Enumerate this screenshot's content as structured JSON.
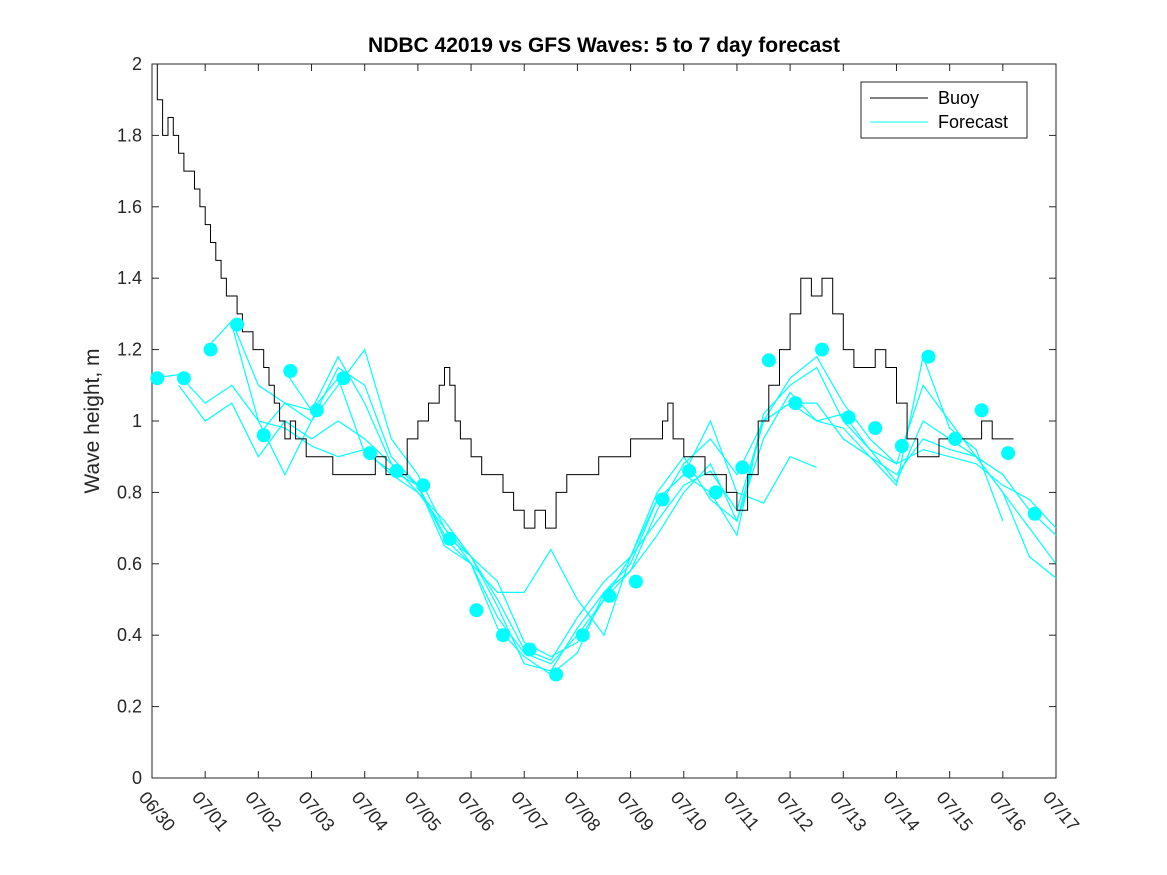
{
  "chart_data": {
    "type": "line",
    "title": "NDBC 42019 vs GFS Waves: 5 to 7 day forecast",
    "xlabel": "",
    "ylabel": "Wave height, m",
    "xlim": [
      "06/30",
      "07/17"
    ],
    "ylim": [
      0,
      2
    ],
    "x_ticks": [
      "06/30",
      "07/01",
      "07/02",
      "07/03",
      "07/04",
      "07/05",
      "07/06",
      "07/07",
      "07/08",
      "07/09",
      "07/10",
      "07/11",
      "07/12",
      "07/13",
      "07/14",
      "07/15",
      "07/16",
      "07/17"
    ],
    "y_ticks": [
      0,
      0.2,
      0.4,
      0.6,
      0.8,
      1,
      1.2,
      1.4,
      1.6,
      1.8,
      2
    ],
    "y_tick_labels": [
      "0",
      "0.2",
      "0.4",
      "0.6",
      "0.8",
      "1",
      "1.2",
      "1.4",
      "1.6",
      "1.8",
      "2"
    ],
    "grid": false,
    "legend_position": "top-right",
    "x_unit_note": "day",
    "buoy_color": "#000000",
    "forecast_color": "#00ffff",
    "series": [
      {
        "name": "Buoy",
        "color": "#000000",
        "x_days": [
          0,
          0.1,
          0.2,
          0.3,
          0.4,
          0.5,
          0.6,
          0.7,
          0.8,
          0.9,
          1.0,
          1.1,
          1.2,
          1.3,
          1.4,
          1.5,
          1.6,
          1.7,
          1.8,
          1.9,
          2.0,
          2.1,
          2.2,
          2.3,
          2.4,
          2.5,
          2.6,
          2.7,
          2.8,
          2.9,
          3.0,
          3.2,
          3.4,
          3.6,
          3.8,
          4.0,
          4.2,
          4.4,
          4.6,
          4.8,
          5.0,
          5.2,
          5.4,
          5.5,
          5.6,
          5.7,
          5.8,
          6.0,
          6.2,
          6.4,
          6.6,
          6.8,
          7.0,
          7.2,
          7.4,
          7.6,
          7.8,
          8.0,
          8.2,
          8.4,
          8.6,
          8.8,
          9.0,
          9.2,
          9.4,
          9.6,
          9.7,
          9.8,
          10.0,
          10.2,
          10.4,
          10.6,
          10.8,
          11.0,
          11.1,
          11.2,
          11.4,
          11.6,
          11.8,
          12.0,
          12.2,
          12.4,
          12.6,
          12.8,
          13.0,
          13.2,
          13.4,
          13.6,
          13.8,
          14.0,
          14.2,
          14.4,
          14.6,
          14.8,
          15.0,
          15.2,
          15.4,
          15.6,
          15.8,
          16.0,
          16.2
        ],
        "values": [
          2.0,
          1.9,
          1.8,
          1.85,
          1.8,
          1.75,
          1.7,
          1.7,
          1.65,
          1.6,
          1.55,
          1.5,
          1.45,
          1.4,
          1.35,
          1.35,
          1.3,
          1.25,
          1.25,
          1.2,
          1.2,
          1.15,
          1.1,
          1.05,
          1.0,
          0.95,
          1.0,
          0.95,
          0.95,
          0.9,
          0.9,
          0.9,
          0.85,
          0.85,
          0.85,
          0.85,
          0.9,
          0.85,
          0.85,
          0.95,
          1.0,
          1.05,
          1.1,
          1.15,
          1.1,
          1.0,
          0.95,
          0.9,
          0.85,
          0.85,
          0.8,
          0.75,
          0.7,
          0.75,
          0.7,
          0.8,
          0.85,
          0.85,
          0.85,
          0.9,
          0.9,
          0.9,
          0.95,
          0.95,
          0.95,
          1.0,
          1.05,
          0.95,
          0.9,
          0.9,
          0.85,
          0.85,
          0.8,
          0.75,
          0.75,
          0.85,
          1.0,
          1.1,
          1.2,
          1.3,
          1.4,
          1.35,
          1.4,
          1.3,
          1.2,
          1.15,
          1.15,
          1.2,
          1.15,
          1.05,
          0.95,
          0.9,
          0.9,
          0.95,
          0.95,
          0.95,
          0.95,
          1.0,
          0.95,
          0.95,
          0.95
        ]
      },
      {
        "name": "Forecast",
        "color": "#00ffff",
        "markers": {
          "x_days": [
            0.1,
            0.6,
            1.1,
            1.6,
            2.1,
            2.6,
            3.1,
            3.6,
            4.1,
            4.6,
            5.1,
            5.6,
            6.1,
            6.6,
            7.1,
            7.6,
            8.1,
            8.6,
            9.1,
            9.6,
            10.1,
            10.6,
            11.1,
            11.6,
            12.1,
            12.6,
            13.1,
            13.6,
            14.1,
            14.6,
            15.1,
            15.6,
            16.1,
            16.6
          ],
          "values": [
            1.12,
            1.12,
            1.2,
            1.27,
            0.96,
            1.14,
            1.03,
            1.12,
            0.91,
            0.86,
            0.82,
            0.67,
            0.47,
            0.4,
            0.36,
            0.29,
            0.4,
            0.51,
            0.55,
            0.78,
            0.86,
            0.8,
            0.87,
            1.17,
            1.05,
            1.2,
            1.01,
            0.98,
            0.93,
            1.18,
            0.95,
            1.03,
            0.91,
            0.74
          ]
        },
        "runs": [
          {
            "x_days": [
              0,
              0.5,
              1,
              1.5,
              2,
              2.5,
              3,
              3.5,
              4,
              4.5,
              5,
              5.5,
              6,
              6.5,
              7,
              7.5,
              8,
              8.5,
              9,
              9.5,
              10,
              10.5,
              11,
              11.5,
              12,
              12.5,
              13,
              13.5,
              14,
              14.5,
              15,
              15.5,
              16,
              16.5,
              17
            ],
            "values": [
              1.12,
              1.13,
              1.05,
              1.1,
              1.0,
              0.98,
              0.93,
              0.9,
              0.92,
              0.85,
              0.8,
              0.7,
              0.62,
              0.5,
              0.36,
              0.33,
              0.45,
              0.55,
              0.62,
              0.72,
              0.82,
              0.86,
              0.75,
              1.0,
              1.05,
              1.05,
              0.95,
              0.9,
              0.85,
              0.95,
              0.92,
              0.9,
              0.85,
              0.75,
              0.68
            ]
          },
          {
            "x_days": [
              0.5,
              1,
              1.5,
              2,
              2.5,
              3,
              3.5,
              4,
              4.5,
              5,
              5.5,
              6,
              6.5,
              7,
              7.5,
              8,
              8.5,
              9,
              9.5,
              10,
              10.5,
              11,
              11.5,
              12,
              12.5,
              13,
              13.5,
              14,
              14.5,
              15,
              15.5,
              16,
              16.5,
              17
            ],
            "values": [
              1.1,
              1.0,
              1.05,
              0.9,
              1.0,
              0.95,
              1.0,
              0.95,
              0.88,
              0.8,
              0.72,
              0.62,
              0.55,
              0.38,
              0.34,
              0.38,
              0.5,
              0.58,
              0.68,
              0.8,
              0.88,
              0.72,
              0.95,
              1.08,
              1.0,
              1.02,
              0.92,
              0.88,
              0.92,
              0.9,
              0.88,
              0.82,
              0.78,
              0.7
            ]
          },
          {
            "x_days": [
              1,
              1.5,
              2,
              2.5,
              3,
              3.5,
              4,
              4.5,
              5,
              5.5,
              6,
              6.5,
              7,
              7.5,
              8,
              8.5,
              9,
              9.5,
              10,
              10.5,
              11,
              11.5,
              12,
              12.5,
              13,
              13.5,
              14,
              14.5,
              15,
              15.5,
              16,
              16.5,
              17
            ],
            "values": [
              1.2,
              1.28,
              1.1,
              1.05,
              1.0,
              1.15,
              1.1,
              0.9,
              0.82,
              0.68,
              0.62,
              0.48,
              0.32,
              0.3,
              0.42,
              0.52,
              0.6,
              0.78,
              0.85,
              0.8,
              0.68,
              1.02,
              1.1,
              1.15,
              1.0,
              0.92,
              0.83,
              1.0,
              0.95,
              0.9,
              0.8,
              0.7,
              0.6
            ]
          },
          {
            "x_days": [
              1.5,
              2,
              2.5,
              3,
              3.5,
              4,
              4.5,
              5,
              5.5,
              6,
              6.5,
              7,
              7.5,
              8,
              8.5,
              9,
              9.5,
              10,
              10.5,
              11,
              11.5,
              12,
              12.5,
              13,
              13.5,
              14,
              14.5,
              15,
              15.5,
              16,
              16.5,
              17
            ],
            "values": [
              1.27,
              1.0,
              0.85,
              1.0,
              1.1,
              1.2,
              0.95,
              0.85,
              0.7,
              0.6,
              0.45,
              0.35,
              0.32,
              0.4,
              0.5,
              0.62,
              0.8,
              0.9,
              0.78,
              0.72,
              1.0,
              1.12,
              1.18,
              1.05,
              0.95,
              0.88,
              1.1,
              1.0,
              0.9,
              0.8,
              0.62,
              0.56
            ]
          },
          {
            "x_days": [
              2,
              2.5,
              3,
              3.5,
              4,
              4.5,
              5,
              5.5,
              6,
              6.5,
              7,
              7.5,
              8,
              8.5,
              9,
              9.5,
              10,
              10.5,
              11,
              11.5,
              12,
              12.5,
              13,
              13.5,
              14,
              14.5,
              15,
              15.5,
              16
            ],
            "values": [
              0.96,
              1.05,
              1.03,
              1.18,
              1.05,
              0.88,
              0.82,
              0.65,
              0.6,
              0.42,
              0.34,
              0.29,
              0.35,
              0.52,
              0.58,
              0.75,
              0.88,
              0.95,
              0.85,
              1.0,
              1.05,
              1.0,
              0.98,
              0.9,
              0.82,
              1.18,
              0.98,
              0.92,
              0.72
            ]
          },
          {
            "x_days": [
              2.5,
              3,
              3.5,
              4,
              4.5,
              5,
              5.5,
              6,
              6.5,
              7,
              7.5,
              8,
              8.5,
              9,
              9.5,
              10,
              10.5,
              11,
              11.5,
              12,
              12.5
            ],
            "values": [
              1.14,
              1.03,
              1.12,
              0.91,
              0.86,
              0.82,
              0.67,
              0.6,
              0.52,
              0.52,
              0.64,
              0.5,
              0.4,
              0.62,
              0.78,
              0.85,
              1.0,
              0.8,
              0.77,
              0.9,
              0.87
            ]
          }
        ]
      }
    ]
  }
}
